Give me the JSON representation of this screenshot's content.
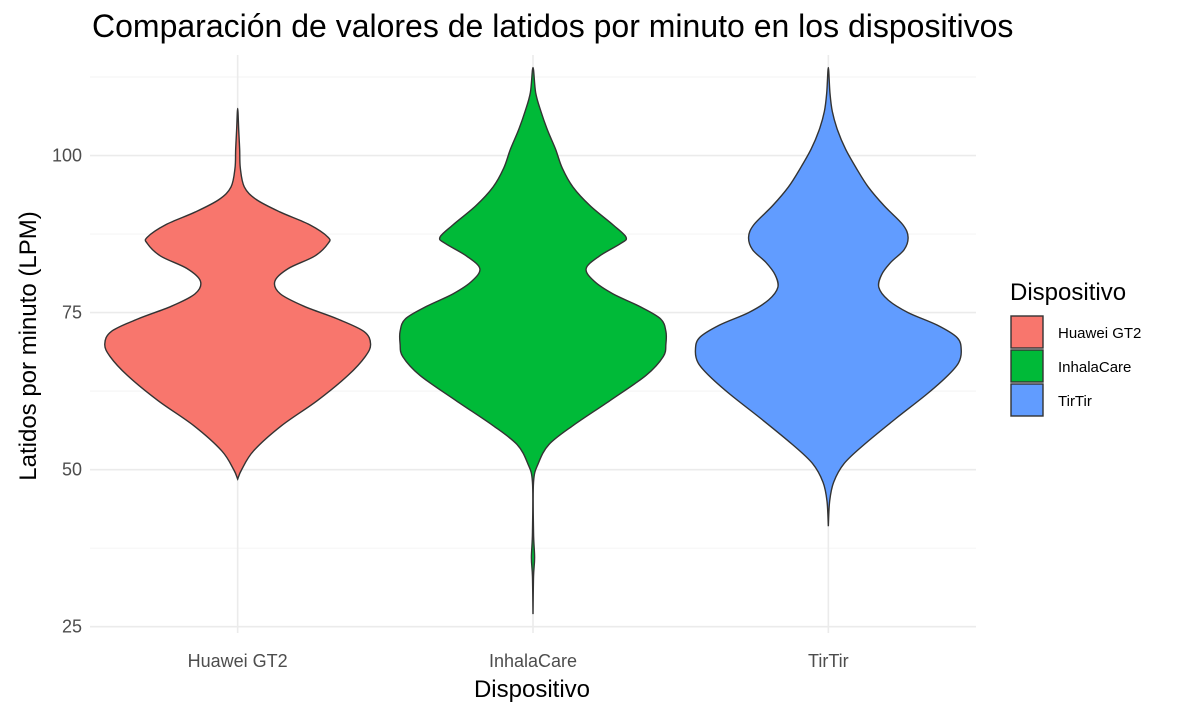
{
  "chart_data": {
    "type": "violin",
    "title": "Comparación de valores de latidos por minuto en los dispositivos",
    "xlabel": "Dispositivo",
    "ylabel": "Latidos por minuto (LPM)",
    "ylim": [
      24,
      116
    ],
    "yticks": [
      25,
      50,
      75,
      100
    ],
    "grid": true,
    "legend": {
      "title": "Dispositivo",
      "position": "right"
    },
    "categories": [
      "Huawei GT2",
      "InhalaCare",
      "TirTir"
    ],
    "series": [
      {
        "name": "Huawei GT2",
        "color": "#F8766D",
        "min": 48.5,
        "max": 107.5,
        "profile": [
          [
            48.5,
            0
          ],
          [
            50,
            0.03
          ],
          [
            53,
            0.12
          ],
          [
            57,
            0.33
          ],
          [
            61,
            0.6
          ],
          [
            65,
            0.83
          ],
          [
            68,
            0.96
          ],
          [
            70,
            1.0
          ],
          [
            72,
            0.95
          ],
          [
            74,
            0.75
          ],
          [
            76,
            0.5
          ],
          [
            78,
            0.32
          ],
          [
            80,
            0.28
          ],
          [
            82,
            0.38
          ],
          [
            84,
            0.58
          ],
          [
            86,
            0.68
          ],
          [
            87,
            0.68
          ],
          [
            89,
            0.54
          ],
          [
            91,
            0.32
          ],
          [
            93,
            0.14
          ],
          [
            95,
            0.05
          ],
          [
            98,
            0.02
          ],
          [
            101,
            0.015
          ],
          [
            104,
            0.008
          ],
          [
            107.5,
            0
          ]
        ]
      },
      {
        "name": "InhalaCare",
        "color": "#00BA38",
        "min": 27,
        "max": 114,
        "profile": [
          [
            27,
            0
          ],
          [
            33,
            0.004
          ],
          [
            36,
            0.012
          ],
          [
            40,
            0.004
          ],
          [
            48,
            0.004
          ],
          [
            51,
            0.04
          ],
          [
            54,
            0.12
          ],
          [
            57,
            0.3
          ],
          [
            61,
            0.58
          ],
          [
            65,
            0.85
          ],
          [
            68,
            0.98
          ],
          [
            70,
            1.0
          ],
          [
            72,
            1.0
          ],
          [
            74,
            0.96
          ],
          [
            76,
            0.8
          ],
          [
            78,
            0.6
          ],
          [
            80,
            0.46
          ],
          [
            82,
            0.4
          ],
          [
            84,
            0.5
          ],
          [
            86,
            0.66
          ],
          [
            87,
            0.7
          ],
          [
            89,
            0.6
          ],
          [
            92,
            0.43
          ],
          [
            95,
            0.3
          ],
          [
            98,
            0.22
          ],
          [
            101,
            0.17
          ],
          [
            104,
            0.11
          ],
          [
            107,
            0.06
          ],
          [
            110,
            0.02
          ],
          [
            114,
            0
          ]
        ]
      },
      {
        "name": "TirTir",
        "color": "#619CFF",
        "min": 41,
        "max": 114,
        "profile": [
          [
            41,
            0
          ],
          [
            45,
            0.01
          ],
          [
            48,
            0.04
          ],
          [
            51,
            0.12
          ],
          [
            54,
            0.27
          ],
          [
            58,
            0.5
          ],
          [
            62,
            0.74
          ],
          [
            65,
            0.9
          ],
          [
            67,
            0.98
          ],
          [
            69,
            1.0
          ],
          [
            71,
            0.97
          ],
          [
            73,
            0.82
          ],
          [
            75,
            0.6
          ],
          [
            77,
            0.45
          ],
          [
            79,
            0.38
          ],
          [
            81,
            0.4
          ],
          [
            83,
            0.47
          ],
          [
            85,
            0.57
          ],
          [
            87,
            0.6
          ],
          [
            89,
            0.56
          ],
          [
            92,
            0.42
          ],
          [
            95,
            0.3
          ],
          [
            98,
            0.21
          ],
          [
            101,
            0.13
          ],
          [
            104,
            0.07
          ],
          [
            107,
            0.03
          ],
          [
            110,
            0.012
          ],
          [
            114,
            0
          ]
        ]
      }
    ]
  }
}
